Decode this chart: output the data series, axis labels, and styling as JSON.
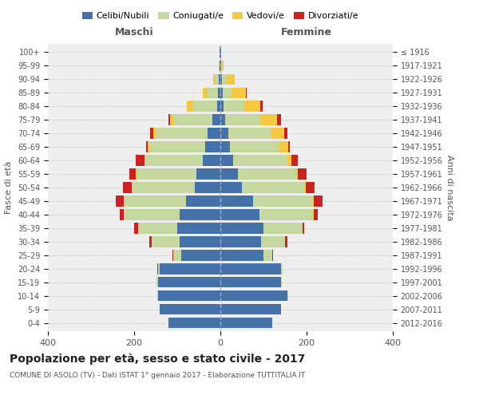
{
  "age_groups": [
    "0-4",
    "5-9",
    "10-14",
    "15-19",
    "20-24",
    "25-29",
    "30-34",
    "35-39",
    "40-44",
    "45-49",
    "50-54",
    "55-59",
    "60-64",
    "65-69",
    "70-74",
    "75-79",
    "80-84",
    "85-89",
    "90-94",
    "95-99",
    "100+"
  ],
  "birth_years": [
    "2012-2016",
    "2007-2011",
    "2002-2006",
    "1997-2001",
    "1992-1996",
    "1987-1991",
    "1982-1986",
    "1977-1981",
    "1972-1976",
    "1967-1971",
    "1962-1966",
    "1957-1961",
    "1952-1956",
    "1947-1951",
    "1942-1946",
    "1937-1941",
    "1932-1936",
    "1927-1931",
    "1922-1926",
    "1917-1921",
    "≤ 1916"
  ],
  "males": {
    "celibi": [
      120,
      140,
      145,
      145,
      140,
      90,
      95,
      100,
      95,
      80,
      60,
      55,
      40,
      35,
      30,
      18,
      8,
      5,
      4,
      1,
      1
    ],
    "coniugati": [
      0,
      0,
      2,
      3,
      5,
      20,
      65,
      90,
      130,
      145,
      145,
      140,
      135,
      130,
      120,
      90,
      55,
      25,
      8,
      2,
      0
    ],
    "vedovi": [
      0,
      0,
      0,
      0,
      0,
      0,
      0,
      0,
      0,
      0,
      1,
      1,
      1,
      3,
      5,
      8,
      15,
      10,
      5,
      1,
      0
    ],
    "divorziati": [
      0,
      0,
      0,
      0,
      1,
      2,
      5,
      10,
      8,
      18,
      20,
      15,
      20,
      5,
      8,
      5,
      0,
      0,
      0,
      0,
      0
    ]
  },
  "females": {
    "nubili": [
      120,
      140,
      155,
      140,
      140,
      100,
      95,
      100,
      90,
      75,
      50,
      40,
      30,
      22,
      18,
      12,
      8,
      5,
      4,
      1,
      1
    ],
    "coniugate": [
      0,
      0,
      2,
      3,
      5,
      20,
      55,
      90,
      125,
      140,
      145,
      135,
      125,
      115,
      100,
      80,
      45,
      20,
      10,
      2,
      0
    ],
    "vedove": [
      0,
      0,
      0,
      0,
      0,
      0,
      0,
      0,
      1,
      2,
      3,
      5,
      10,
      20,
      30,
      40,
      40,
      35,
      20,
      5,
      1
    ],
    "divorziate": [
      0,
      0,
      0,
      0,
      0,
      2,
      5,
      5,
      10,
      20,
      20,
      20,
      15,
      5,
      8,
      8,
      5,
      2,
      0,
      0,
      0
    ]
  },
  "colors": {
    "celibi": "#4472a8",
    "coniugati": "#c5d8a0",
    "vedovi": "#f5c842",
    "divorziati": "#cc2222"
  },
  "xlim": 400,
  "title": "Popolazione per età, sesso e stato civile - 2017",
  "subtitle": "COMUNE DI ASOLO (TV) - Dati ISTAT 1° gennaio 2017 - Elaborazione TUTTITALIA.IT",
  "ylabel_left": "Fasce di età",
  "ylabel_right": "Anni di nascita",
  "xlabel_left": "Maschi",
  "xlabel_right": "Femmine",
  "legend_labels": [
    "Celibi/Nubili",
    "Coniugati/e",
    "Vedovi/e",
    "Divorziati/e"
  ],
  "bg_color": "#eeeeee"
}
